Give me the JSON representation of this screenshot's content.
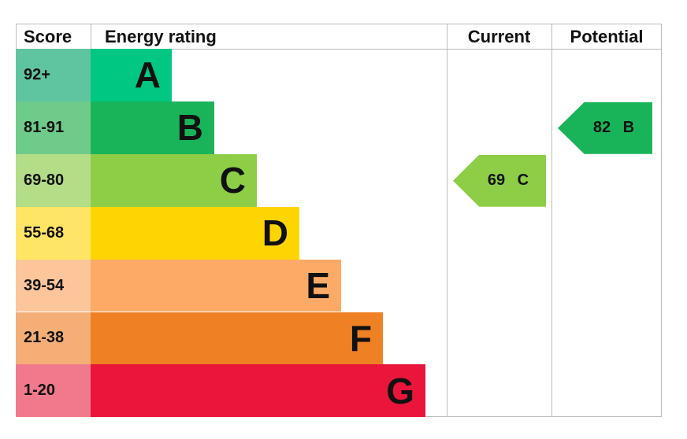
{
  "chart_data": {
    "type": "bar",
    "headers": {
      "score": "Score",
      "rating": "Energy rating",
      "current": "Current",
      "potential": "Potential"
    },
    "bands": [
      {
        "letter": "A",
        "range": "92+",
        "color": "#00c781",
        "score_color": "#5fc5a0"
      },
      {
        "letter": "B",
        "range": "81-91",
        "color": "#19b459",
        "score_color": "#6fcb8a"
      },
      {
        "letter": "C",
        "range": "69-80",
        "color": "#8dce46",
        "score_color": "#b3dd87"
      },
      {
        "letter": "D",
        "range": "55-68",
        "color": "#ffd500",
        "score_color": "#ffe566"
      },
      {
        "letter": "E",
        "range": "39-54",
        "color": "#fcaa65",
        "score_color": "#fcc69a"
      },
      {
        "letter": "F",
        "range": "21-38",
        "color": "#ef8023",
        "score_color": "#f5ae76"
      },
      {
        "letter": "G",
        "range": "1-20",
        "color": "#e9153b",
        "score_color": "#f07a8c"
      }
    ],
    "current": {
      "value": 69,
      "band": "C",
      "label": "69 C"
    },
    "potential": {
      "value": 82,
      "band": "B",
      "label": "82 B"
    }
  }
}
